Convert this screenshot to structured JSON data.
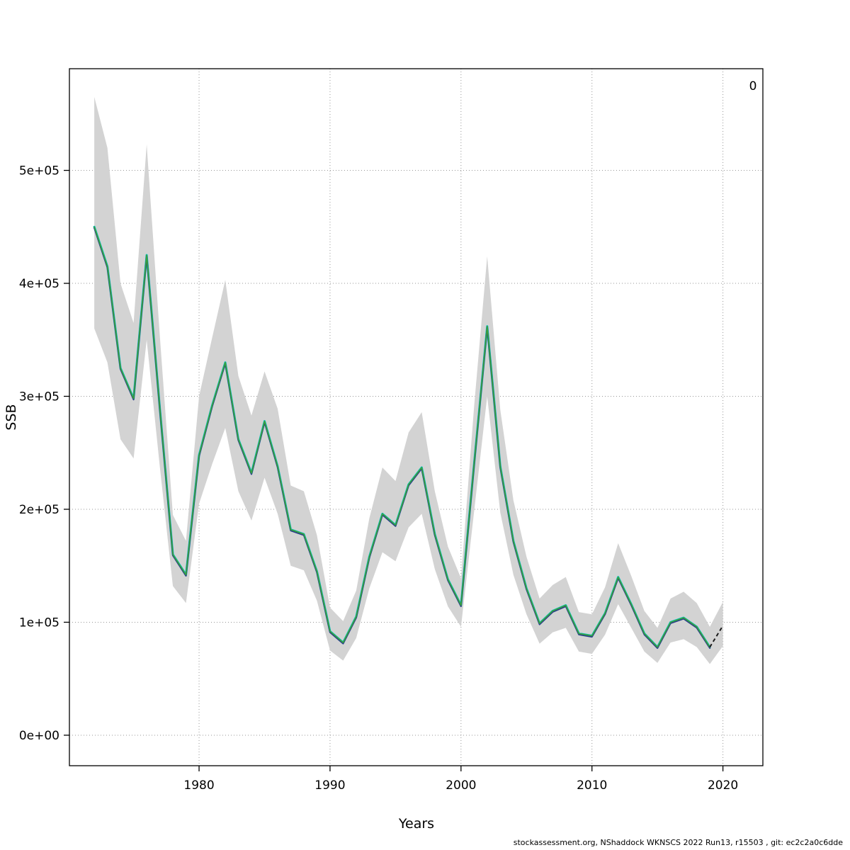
{
  "chart_data": {
    "type": "line",
    "title": "",
    "xlabel": "Years",
    "ylabel": "SSB",
    "legend_label": "0",
    "legend_position": "top-right",
    "caption": "stockassessment.org, NShaddock WKNSCS 2022 Run13, r15503 , git: ec2c2a0c6dde",
    "grid": true,
    "xlim": [
      1970.1,
      2023.05
    ],
    "ylim": [
      -27000,
      590000
    ],
    "xticks": [
      1980,
      1990,
      2000,
      2010,
      2020
    ],
    "yticks": [
      0,
      100000,
      200000,
      300000,
      400000,
      500000
    ],
    "ytick_labels": [
      "0e+00",
      "1e+05",
      "2e+05",
      "3e+05",
      "4e+05",
      "5e+05"
    ],
    "years": [
      1972,
      1973,
      1974,
      1975,
      1976,
      1977,
      1978,
      1979,
      1980,
      1981,
      1982,
      1983,
      1984,
      1985,
      1986,
      1987,
      1988,
      1989,
      1990,
      1991,
      1992,
      1993,
      1994,
      1995,
      1996,
      1997,
      1998,
      1999,
      2000,
      2001,
      2002,
      2003,
      2004,
      2005,
      2006,
      2007,
      2008,
      2009,
      2010,
      2011,
      2012,
      2013,
      2014,
      2015,
      2016,
      2017,
      2018,
      2019
    ],
    "ssb": [
      450000,
      415000,
      325000,
      298000,
      425000,
      290000,
      160000,
      142000,
      248000,
      292000,
      330000,
      262000,
      232000,
      278000,
      238000,
      182000,
      178000,
      145000,
      92000,
      82000,
      105000,
      158000,
      196000,
      186000,
      222000,
      237000,
      178000,
      138000,
      115000,
      240000,
      362000,
      238000,
      172000,
      130000,
      99000,
      110000,
      115000,
      90000,
      88000,
      108000,
      140000,
      116000,
      90000,
      78000,
      100000,
      104000,
      96000,
      78000
    ],
    "band_lower": [
      360000,
      330000,
      262000,
      245000,
      350000,
      238000,
      132000,
      117000,
      205000,
      240000,
      272000,
      216000,
      190000,
      228000,
      196000,
      150000,
      146000,
      119000,
      75000,
      66000,
      86000,
      130000,
      162000,
      154000,
      184000,
      196000,
      147000,
      114000,
      96000,
      198000,
      300000,
      197000,
      142000,
      107000,
      81000,
      91000,
      95000,
      74000,
      72000,
      89000,
      116000,
      95000,
      74000,
      64000,
      82000,
      85000,
      78000,
      63000,
      79000
    ],
    "band_upper": [
      565000,
      520000,
      400000,
      365000,
      523000,
      354000,
      195000,
      172000,
      300000,
      352000,
      403000,
      318000,
      283000,
      322000,
      289000,
      221000,
      216000,
      177000,
      113000,
      101000,
      128000,
      192000,
      237000,
      225000,
      268000,
      286000,
      216000,
      167000,
      139000,
      291000,
      424000,
      288000,
      208000,
      158000,
      121000,
      133000,
      140000,
      109000,
      107000,
      131000,
      170000,
      141000,
      110000,
      95000,
      121000,
      127000,
      117000,
      96000,
      118000
    ],
    "forecast_years": [
      2019,
      2020
    ],
    "forecast_ssb": [
      78000,
      97000
    ],
    "series": [
      {
        "name": "estimate-cyan",
        "color": "#00bfc4"
      },
      {
        "name": "estimate-blue",
        "color": "#27408b"
      },
      {
        "name": "fitted-ssb",
        "color": "#3aa33a"
      }
    ],
    "colors": {
      "band": "#d3d3d3",
      "forecast": "#1a1a1a",
      "axis": "#000000",
      "gridline": "#979797"
    }
  },
  "labels": {
    "ylab": "SSB",
    "xlab": "Years"
  }
}
